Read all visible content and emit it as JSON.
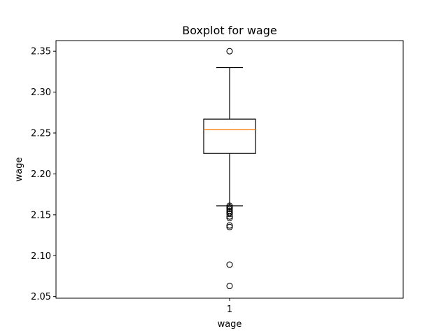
{
  "chart_data": {
    "type": "boxplot",
    "title": "Boxplot for wage",
    "xlabel": "wage",
    "ylabel": "wage",
    "categories": [
      "1"
    ],
    "ylim": [
      2.048,
      2.363
    ],
    "yticks": [
      "2.05",
      "2.10",
      "2.15",
      "2.20",
      "2.25",
      "2.30",
      "2.35"
    ],
    "grid": false,
    "series": [
      {
        "whisker_low": 2.161,
        "q1": 2.225,
        "median": 2.254,
        "q3": 2.267,
        "whisker_high": 2.33,
        "outliers": [
          2.35,
          2.161,
          2.159,
          2.157,
          2.155,
          2.153,
          2.151,
          2.148,
          2.146,
          2.137,
          2.135,
          2.089,
          2.063
        ]
      }
    ],
    "colors": {
      "box": "#000000",
      "median": "#ff7f0e",
      "outlier": "#000000"
    }
  }
}
